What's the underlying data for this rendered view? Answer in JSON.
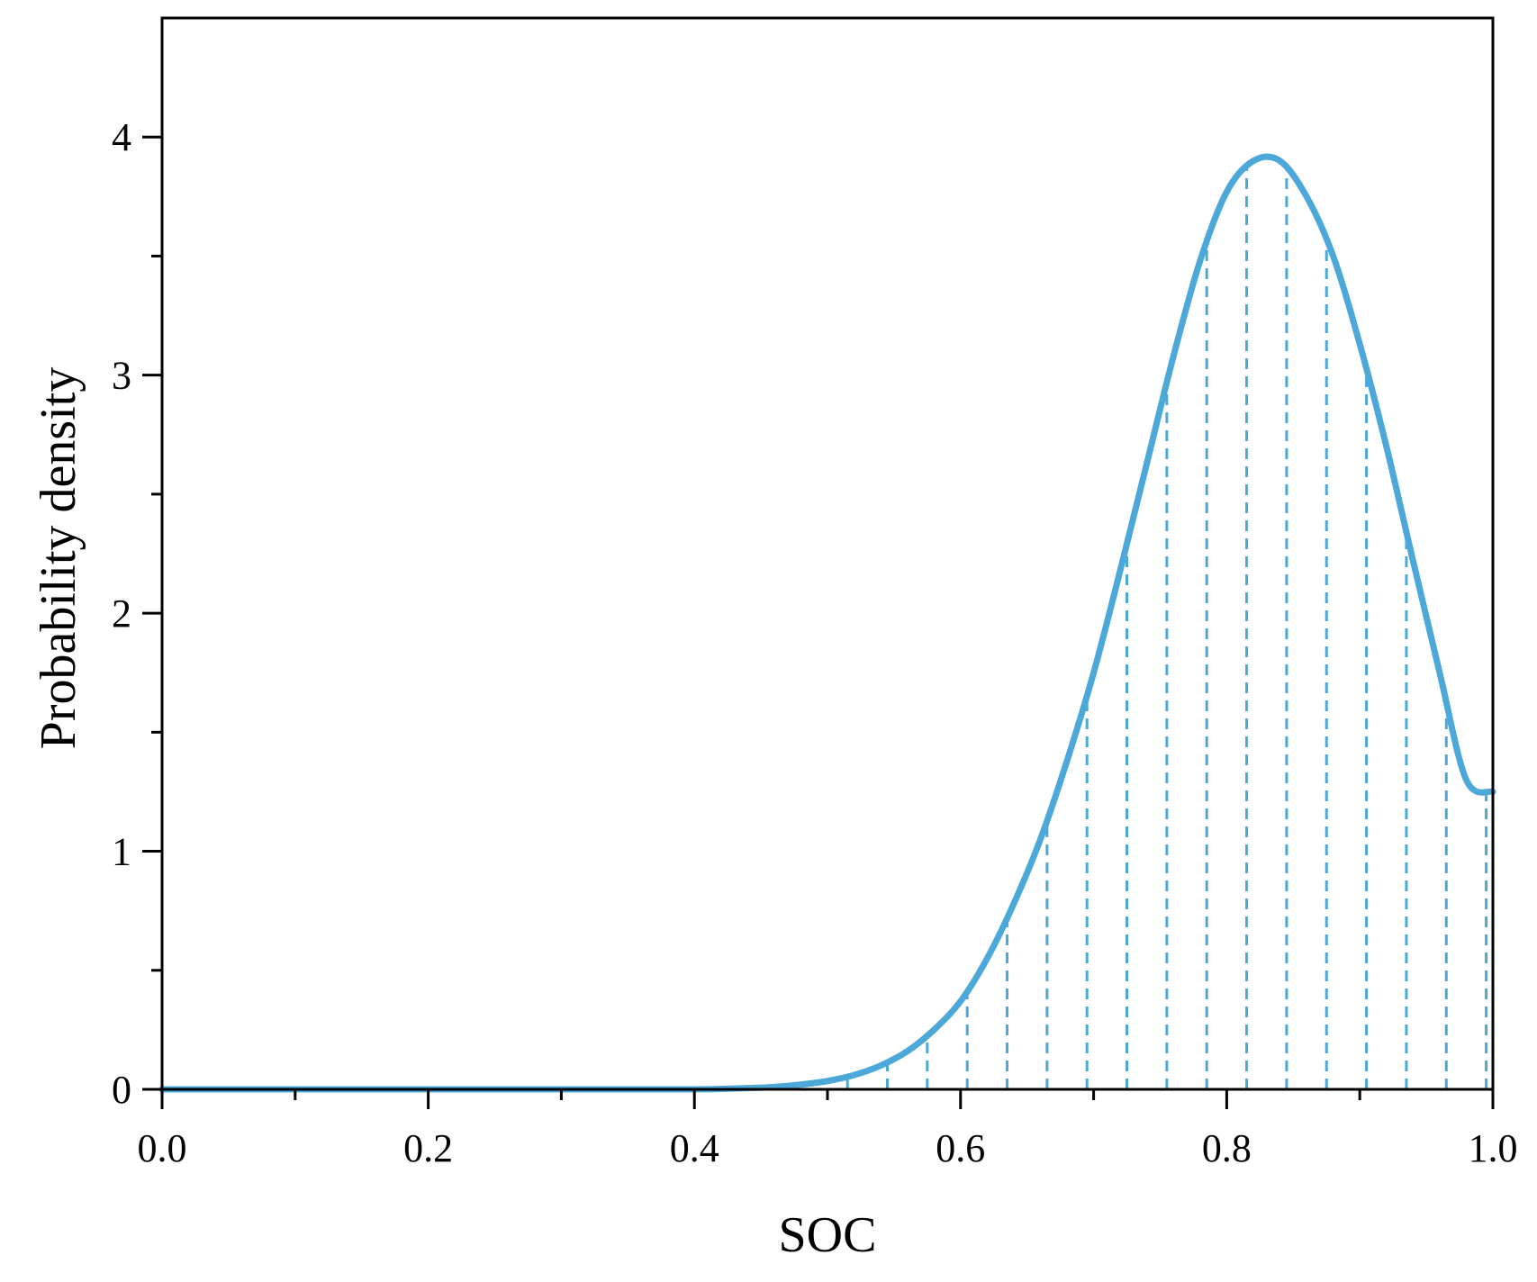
{
  "chart_data": {
    "type": "line",
    "title": "",
    "xlabel": "SOC",
    "ylabel": "Probability density",
    "xlim": [
      0.0,
      1.0
    ],
    "ylim": [
      0,
      4.5
    ],
    "x_ticks": [
      "0.0",
      "0.2",
      "0.4",
      "0.6",
      "0.8",
      "1.0"
    ],
    "y_ticks": [
      "0",
      "1",
      "2",
      "3",
      "4"
    ],
    "x_minor_ticks": [
      0.1,
      0.3,
      0.5,
      0.7,
      0.9
    ],
    "y_minor_ticks": [
      0.5,
      1.5,
      2.5,
      3.5
    ],
    "grid": false,
    "legend": "none",
    "colors": {
      "series": "#4ca8d8",
      "axis": "#000000"
    },
    "series": [
      {
        "style": "solid",
        "x": [
          0.0,
          0.3,
          0.4,
          0.42,
          0.44,
          0.46,
          0.48,
          0.5,
          0.52,
          0.54,
          0.56,
          0.58,
          0.6,
          0.62,
          0.64,
          0.66,
          0.68,
          0.7,
          0.72,
          0.74,
          0.76,
          0.78,
          0.8,
          0.82,
          0.84,
          0.86,
          0.88,
          0.9,
          0.92,
          0.94,
          0.96,
          0.98,
          1.0
        ],
        "y": [
          0.0,
          0.0,
          0.0,
          0.002,
          0.005,
          0.01,
          0.02,
          0.035,
          0.06,
          0.1,
          0.16,
          0.25,
          0.37,
          0.55,
          0.78,
          1.05,
          1.38,
          1.75,
          2.18,
          2.63,
          3.08,
          3.48,
          3.77,
          3.9,
          3.9,
          3.75,
          3.5,
          3.13,
          2.7,
          2.22,
          1.75,
          1.3,
          1.25
        ]
      }
    ],
    "dashed_drops": {
      "style": "dashed",
      "x": [
        0.515,
        0.545,
        0.575,
        0.605,
        0.635,
        0.665,
        0.695,
        0.725,
        0.755,
        0.785,
        0.815,
        0.845,
        0.875,
        0.905,
        0.935,
        0.965,
        0.995
      ]
    }
  }
}
